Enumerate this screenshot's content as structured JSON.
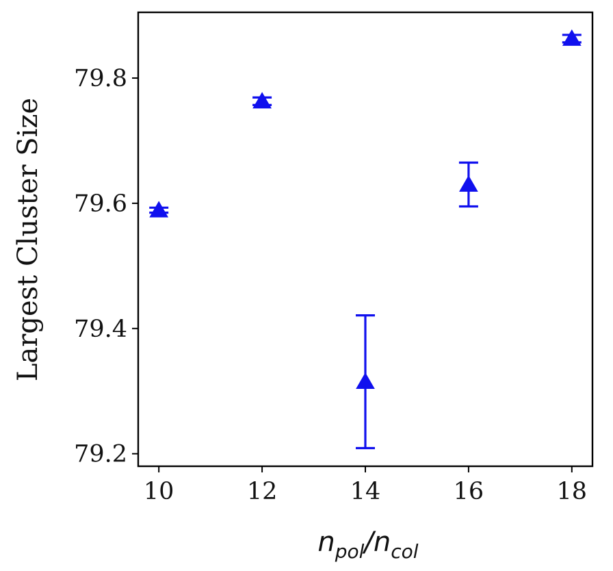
{
  "chart_data": {
    "type": "scatter",
    "title": "",
    "xlabel": {
      "base1": "n",
      "sub1": "pol",
      "slash": "/",
      "base2": "n",
      "sub2": "col"
    },
    "ylabel": "Largest Cluster Size",
    "xlim": [
      9.6,
      18.4
    ],
    "ylim": [
      79.18,
      79.905
    ],
    "xticks": [
      10,
      12,
      14,
      16,
      18
    ],
    "xtick_labels": [
      "10",
      "12",
      "14",
      "16",
      "18"
    ],
    "yticks": [
      79.2,
      79.4,
      79.6,
      79.8
    ],
    "ytick_labels": [
      "79.2",
      "79.4",
      "79.6",
      "79.8"
    ],
    "grid": false,
    "marker": "triangle-up",
    "color": "#1010ee",
    "series": [
      {
        "points": [
          {
            "x": 10,
            "y": 79.589,
            "err": 0.004
          },
          {
            "x": 12,
            "y": 79.763,
            "err": 0.006
          },
          {
            "x": 14,
            "y": 79.315,
            "err": 0.106
          },
          {
            "x": 16,
            "y": 79.63,
            "err": 0.035
          },
          {
            "x": 18,
            "y": 79.863,
            "err": 0.006
          }
        ]
      }
    ]
  }
}
